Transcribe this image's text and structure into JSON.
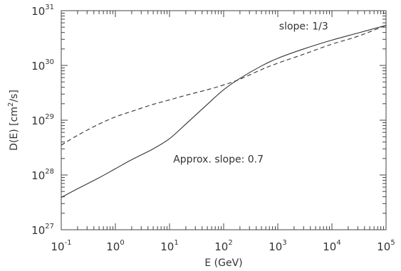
{
  "chart_data": {
    "type": "line",
    "xlabel": "E (GeV)",
    "ylabel_main": "D(E)  [cm",
    "ylabel_exp": "2",
    "ylabel_tail": "/s]",
    "x_scale": "log",
    "y_scale": "log",
    "xlim": [
      0.1,
      100000
    ],
    "ylim": [
      1e+27,
      1e+31
    ],
    "grid": false,
    "x_ticks": [
      {
        "base": "10",
        "exp": "-1",
        "value": 0.1
      },
      {
        "base": "10",
        "exp": "0",
        "value": 1
      },
      {
        "base": "10",
        "exp": "1",
        "value": 10
      },
      {
        "base": "10",
        "exp": "2",
        "value": 100
      },
      {
        "base": "10",
        "exp": "3",
        "value": 1000
      },
      {
        "base": "10",
        "exp": "4",
        "value": 10000
      },
      {
        "base": "10",
        "exp": "5",
        "value": 100000
      }
    ],
    "y_ticks": [
      {
        "base": "10",
        "exp": "27",
        "value": 1e+27
      },
      {
        "base": "10",
        "exp": "28",
        "value": 1e+28
      },
      {
        "base": "10",
        "exp": "29",
        "value": 1e+29
      },
      {
        "base": "10",
        "exp": "30",
        "value": 1e+30
      },
      {
        "base": "10",
        "exp": "31",
        "value": 1e+31
      }
    ],
    "series": [
      {
        "style": "solid",
        "color": "#333333",
        "x": [
          0.1,
          0.2,
          0.5,
          1,
          2,
          5,
          10,
          20,
          50,
          100,
          200,
          500,
          1000,
          3000,
          10000,
          30000,
          100000
        ],
        "y": [
          3.9e+27,
          5.6e+27,
          8.9e+27,
          1.3e+28,
          1.9e+28,
          3e+28,
          4.6e+28,
          8.5e+28,
          1.95e+29,
          3.6e+29,
          5.8e+29,
          9.8e+29,
          1.35e+30,
          2e+30,
          2.9e+30,
          3.9e+30,
          5.4e+30
        ]
      },
      {
        "style": "dashed",
        "color": "#333333",
        "x": [
          0.1,
          0.2,
          0.5,
          1,
          2,
          5,
          10,
          20,
          50,
          100,
          200,
          500,
          1000,
          3000,
          10000,
          30000,
          100000
        ],
        "y": [
          3.5e+28,
          5.3e+28,
          8.5e+28,
          1.15e+29,
          1.45e+29,
          1.95e+29,
          2.35e+29,
          2.85e+29,
          3.6e+29,
          4.4e+29,
          5.6e+29,
          8.4e+29,
          1.1e+30,
          1.6e+30,
          2.45e+30,
          3.4e+30,
          5.4e+30
        ]
      }
    ],
    "annotations": [
      {
        "text": "slope: 1/3",
        "x": 3000,
        "y": 4.5e+30
      },
      {
        "text": "Approx. slope: 0.7",
        "x": 80,
        "y": 1.7e+28
      }
    ]
  }
}
